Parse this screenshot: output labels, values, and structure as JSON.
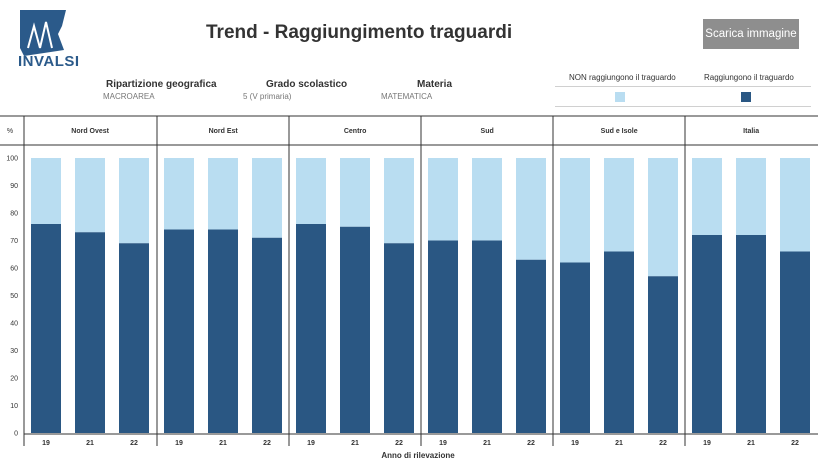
{
  "logo": {
    "text": "INVALSI"
  },
  "header": {
    "title": "Trend - Raggiungimento traguardi",
    "download_label": "Scarica immagine"
  },
  "filters": [
    {
      "label": "Ripartizione geografica",
      "value": "MACROAREA"
    },
    {
      "label": "Grado scolastico",
      "value": "5 (V primaria)"
    },
    {
      "label": "Materia",
      "value": "MATEMATICA"
    }
  ],
  "legend": [
    {
      "label": "NON raggiungono il traguardo",
      "color": "#b9ddf1"
    },
    {
      "label": "Raggiungono il traguardo",
      "color": "#2a5783"
    }
  ],
  "colors": {
    "dark": "#2a5783",
    "light": "#b9ddf1",
    "axis": "#333333"
  },
  "chart_data": {
    "type": "bar",
    "stacked": true,
    "ylabel": "%",
    "xlabel": "Anno di rilevazione",
    "ylim": [
      0,
      100
    ],
    "yticks": [
      0,
      10,
      20,
      30,
      40,
      50,
      60,
      70,
      80,
      90,
      100
    ],
    "panels": [
      {
        "name": "Nord Ovest",
        "categories": [
          "19",
          "21",
          "22"
        ],
        "values": [
          76,
          73,
          69
        ]
      },
      {
        "name": "Nord Est",
        "categories": [
          "19",
          "21",
          "22"
        ],
        "values": [
          74,
          74,
          71
        ]
      },
      {
        "name": "Centro",
        "categories": [
          "19",
          "21",
          "22"
        ],
        "values": [
          76,
          75,
          69
        ]
      },
      {
        "name": "Sud",
        "categories": [
          "19",
          "21",
          "22"
        ],
        "values": [
          70,
          70,
          63
        ]
      },
      {
        "name": "Sud e Isole",
        "categories": [
          "19",
          "21",
          "22"
        ],
        "values": [
          62,
          66,
          57
        ]
      },
      {
        "name": "Italia",
        "categories": [
          "19",
          "21",
          "22"
        ],
        "values": [
          72,
          72,
          66
        ]
      }
    ],
    "series": [
      {
        "name": "Raggiungono il traguardo",
        "color": "#2a5783"
      },
      {
        "name": "NON raggiungono il traguardo",
        "color": "#b9ddf1"
      }
    ]
  }
}
